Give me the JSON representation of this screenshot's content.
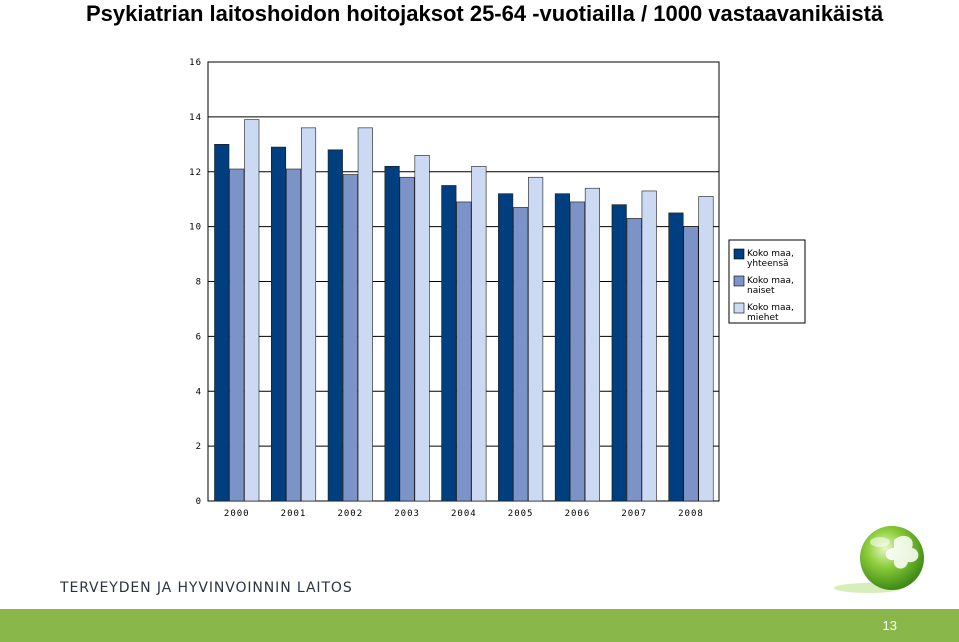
{
  "slide": {
    "title": "Psykiatrian laitoshoidon hoitojaksot 25-64 -vuotiailla / 1000 vastaavanikäistä",
    "org_name": "TERVEYDEN JA HYVINVOINNIN LAITOS",
    "page_number": "13",
    "accent_color": "#8ab74a"
  },
  "chart_data": {
    "type": "bar",
    "title": "Psykiatrian laitoshoidon hoitojaksot 25-64 -vuotiailla / 1000 vastaavanikäistä",
    "xlabel": "",
    "ylabel": "",
    "categories": [
      "2000",
      "2001",
      "2002",
      "2003",
      "2004",
      "2005",
      "2006",
      "2007",
      "2008"
    ],
    "series": [
      {
        "name": "Koko maa, yhteensä",
        "color": "#003f7f",
        "values": [
          13.0,
          12.9,
          12.8,
          12.2,
          11.5,
          11.2,
          11.2,
          10.8,
          10.5
        ]
      },
      {
        "name": "Koko maa, naiset",
        "color": "#7b93c6",
        "values": [
          12.1,
          12.1,
          11.9,
          11.8,
          10.9,
          10.7,
          10.9,
          10.3,
          10.0
        ]
      },
      {
        "name": "Koko maa, miehet",
        "color": "#cbdaf2",
        "values": [
          13.9,
          13.6,
          13.6,
          12.6,
          12.2,
          11.8,
          11.4,
          11.3,
          11.1
        ]
      }
    ],
    "ylim": [
      0,
      16
    ],
    "yticks": [
      "0",
      "2",
      "4",
      "6",
      "8",
      "10",
      "12",
      "14",
      "16"
    ],
    "grid": true,
    "legend_position": "right",
    "legend_lines": [
      [
        "Koko maa,",
        "yhteensä"
      ],
      [
        "Koko maa,",
        "naiset"
      ],
      [
        "Koko maa,",
        "miehet"
      ]
    ]
  }
}
